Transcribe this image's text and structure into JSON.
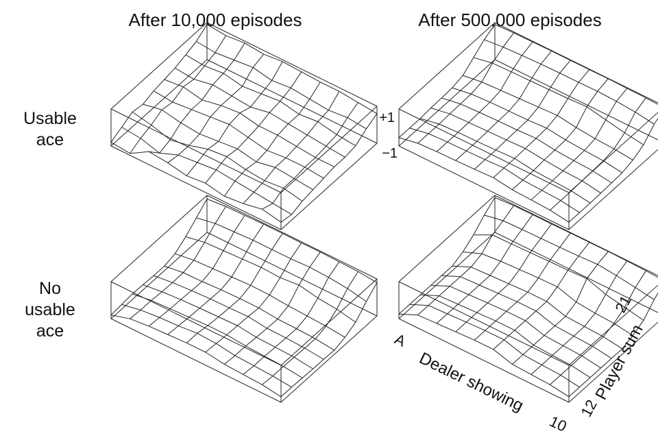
{
  "titles": [
    "After 10,000 episodes",
    "After 500,000 episodes"
  ],
  "row_labels": [
    "Usable\nace",
    "No\nusable\nace"
  ],
  "chart_data": {
    "type": "surface",
    "z_ticks": [
      "+1",
      "−1"
    ],
    "zlim": [
      -1,
      1
    ],
    "x_axis": {
      "label": "Dealer showing",
      "ticks": [
        "A",
        "10"
      ]
    },
    "y_axis": {
      "label": "Player sum",
      "ticks": [
        "12",
        "21"
      ]
    },
    "panels": [
      {
        "name": "usable-10k",
        "z": [
          [
            -0.8,
            -0.9,
            -0.3,
            -0.4,
            -0.6,
            -0.5,
            -0.7,
            -0.6,
            -0.4,
            -0.6
          ],
          [
            -0.5,
            -0.6,
            -0.9,
            -0.5,
            -0.4,
            -0.3,
            -0.4,
            -0.5,
            -0.6,
            -0.7
          ],
          [
            -0.2,
            -0.4,
            -0.7,
            -0.5,
            -0.2,
            -0.1,
            -0.3,
            -0.4,
            -0.3,
            -0.5
          ],
          [
            -0.3,
            -0.1,
            -0.3,
            -0.4,
            -0.3,
            -0.2,
            -0.4,
            -0.2,
            -0.3,
            -0.4
          ],
          [
            -0.1,
            -0.2,
            -0.1,
            0.0,
            0.1,
            -0.1,
            -0.3,
            -0.2,
            -0.2,
            -0.3
          ],
          [
            0.0,
            0.1,
            -0.1,
            0.1,
            0.2,
            0.0,
            0.0,
            -0.1,
            -0.2,
            -0.2
          ],
          [
            0.1,
            0.0,
            0.2,
            0.1,
            0.0,
            0.2,
            0.1,
            0.0,
            -0.1,
            -0.2
          ],
          [
            0.3,
            0.2,
            0.3,
            0.1,
            0.2,
            0.3,
            0.1,
            0.2,
            0.0,
            -0.1
          ],
          [
            0.5,
            0.4,
            0.5,
            0.6,
            0.4,
            0.5,
            0.4,
            0.3,
            0.4,
            0.3
          ],
          [
            0.9,
            0.8,
            0.9,
            0.8,
            0.9,
            0.85,
            0.8,
            0.8,
            0.7,
            0.6
          ]
        ]
      },
      {
        "name": "usable-500k",
        "z": [
          [
            -0.55,
            -0.35,
            -0.3,
            -0.28,
            -0.25,
            -0.2,
            -0.35,
            -0.4,
            -0.45,
            -0.6
          ],
          [
            -0.55,
            -0.35,
            -0.3,
            -0.28,
            -0.25,
            -0.2,
            -0.35,
            -0.4,
            -0.45,
            -0.6
          ],
          [
            -0.55,
            -0.35,
            -0.3,
            -0.28,
            -0.25,
            -0.2,
            -0.35,
            -0.4,
            -0.45,
            -0.6
          ],
          [
            -0.5,
            -0.32,
            -0.28,
            -0.25,
            -0.22,
            -0.18,
            -0.3,
            -0.38,
            -0.42,
            -0.58
          ],
          [
            -0.48,
            -0.3,
            -0.25,
            -0.22,
            -0.2,
            -0.15,
            -0.28,
            -0.35,
            -0.4,
            -0.55
          ],
          [
            -0.45,
            -0.28,
            -0.22,
            -0.2,
            -0.18,
            -0.12,
            -0.25,
            -0.32,
            -0.38,
            -0.52
          ],
          [
            -0.3,
            -0.15,
            -0.1,
            -0.05,
            0.0,
            0.05,
            -0.1,
            -0.2,
            -0.25,
            -0.35
          ],
          [
            0.15,
            0.35,
            0.38,
            0.4,
            0.42,
            0.45,
            0.5,
            0.3,
            0.1,
            -0.05
          ],
          [
            0.6,
            0.7,
            0.75,
            0.78,
            0.8,
            0.8,
            0.82,
            0.78,
            0.7,
            0.55
          ],
          [
            0.9,
            0.95,
            0.96,
            0.97,
            0.97,
            0.97,
            0.98,
            0.96,
            0.95,
            0.9
          ]
        ]
      },
      {
        "name": "no-usable-10k",
        "z": [
          [
            -0.8,
            -0.5,
            -0.4,
            -0.35,
            -0.3,
            -0.3,
            -0.45,
            -0.5,
            -0.55,
            -0.7
          ],
          [
            -0.75,
            -0.55,
            -0.45,
            -0.4,
            -0.3,
            -0.35,
            -0.5,
            -0.55,
            -0.6,
            -0.7
          ],
          [
            -0.7,
            -0.55,
            -0.5,
            -0.45,
            -0.4,
            -0.4,
            -0.5,
            -0.55,
            -0.6,
            -0.72
          ],
          [
            -0.72,
            -0.6,
            -0.52,
            -0.48,
            -0.45,
            -0.42,
            -0.55,
            -0.58,
            -0.62,
            -0.75
          ],
          [
            -0.75,
            -0.62,
            -0.55,
            -0.5,
            -0.48,
            -0.45,
            -0.58,
            -0.6,
            -0.65,
            -0.75
          ],
          [
            -0.75,
            -0.6,
            -0.58,
            -0.52,
            -0.5,
            -0.5,
            -0.6,
            -0.62,
            -0.66,
            -0.78
          ],
          [
            -0.6,
            -0.45,
            -0.4,
            -0.35,
            -0.3,
            -0.32,
            -0.4,
            -0.45,
            -0.5,
            -0.6
          ],
          [
            -0.2,
            0.0,
            0.05,
            0.1,
            0.15,
            0.1,
            0.2,
            0.0,
            -0.1,
            -0.3
          ],
          [
            0.3,
            0.5,
            0.55,
            0.6,
            0.6,
            0.6,
            0.65,
            0.6,
            0.5,
            0.3
          ],
          [
            0.8,
            0.9,
            0.92,
            0.95,
            0.95,
            0.94,
            0.95,
            0.92,
            0.9,
            0.8
          ]
        ]
      },
      {
        "name": "no-usable-500k",
        "z": [
          [
            -0.75,
            -0.3,
            -0.25,
            -0.2,
            -0.15,
            -0.15,
            -0.45,
            -0.5,
            -0.55,
            -0.7
          ],
          [
            -0.75,
            -0.3,
            -0.25,
            -0.2,
            -0.15,
            -0.15,
            -0.45,
            -0.5,
            -0.55,
            -0.7
          ],
          [
            -0.75,
            -0.3,
            -0.25,
            -0.2,
            -0.15,
            -0.15,
            -0.45,
            -0.5,
            -0.55,
            -0.7
          ],
          [
            -0.75,
            -0.3,
            -0.25,
            -0.2,
            -0.15,
            -0.15,
            -0.45,
            -0.5,
            -0.55,
            -0.7
          ],
          [
            -0.75,
            -0.3,
            -0.25,
            -0.2,
            -0.15,
            -0.15,
            -0.45,
            -0.5,
            -0.55,
            -0.7
          ],
          [
            -0.75,
            -0.3,
            -0.25,
            -0.2,
            -0.15,
            -0.15,
            -0.45,
            -0.5,
            -0.55,
            -0.7
          ],
          [
            -0.5,
            -0.1,
            0.0,
            0.05,
            0.1,
            0.12,
            -0.2,
            -0.3,
            -0.35,
            -0.5
          ],
          [
            -0.1,
            0.4,
            0.42,
            0.45,
            0.48,
            0.5,
            0.55,
            0.2,
            0.0,
            -0.2
          ],
          [
            0.45,
            0.65,
            0.68,
            0.7,
            0.72,
            0.75,
            0.8,
            0.7,
            0.55,
            0.4
          ],
          [
            0.88,
            0.95,
            0.96,
            0.96,
            0.97,
            0.97,
            0.98,
            0.96,
            0.94,
            0.88
          ]
        ]
      }
    ]
  }
}
